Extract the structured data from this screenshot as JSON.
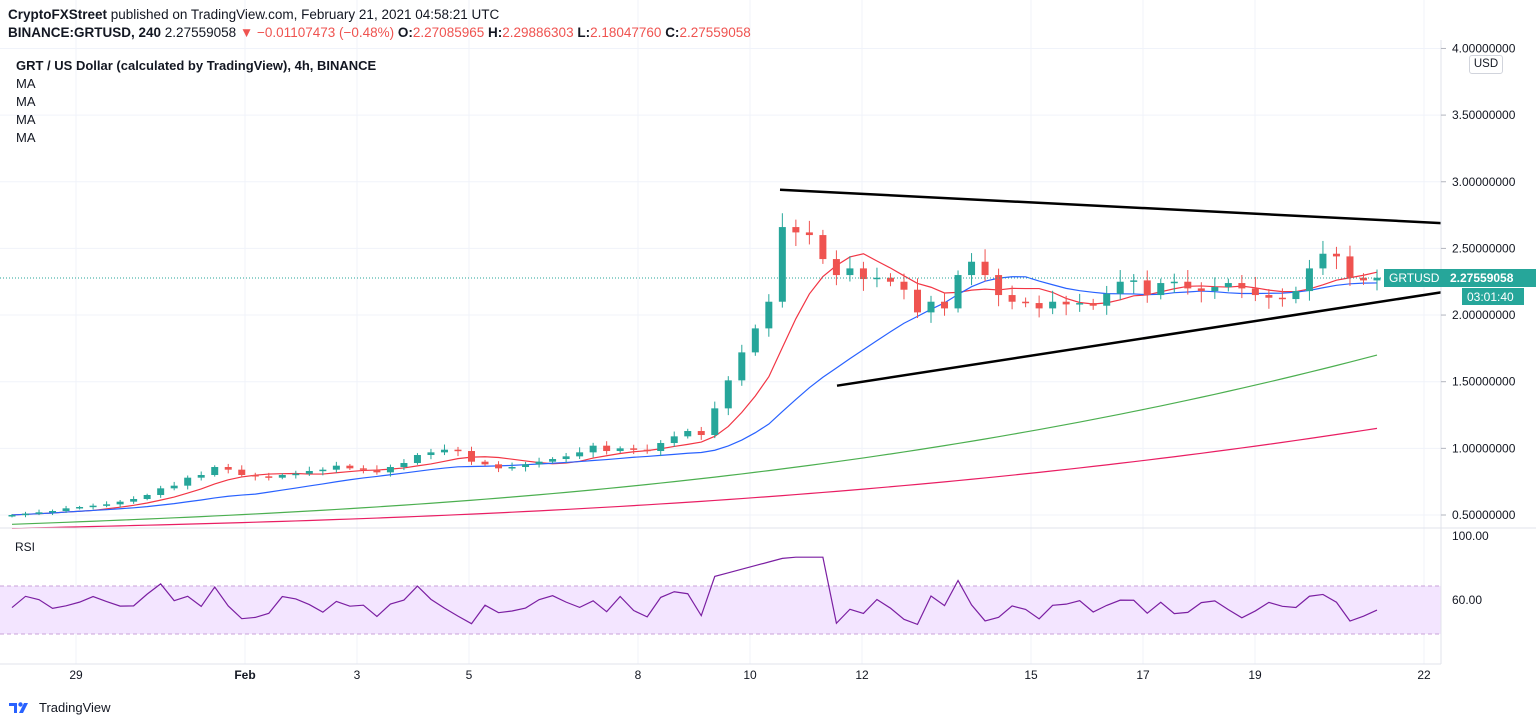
{
  "header": {
    "publisher": "CryptoFXStreet",
    "published_text": "published on TradingView.com, February 21, 2021 04:58:21 UTC",
    "symbol_interval": "BINANCE:GRTUSD, 240",
    "last_price": "2.27559058",
    "arrow": "▼",
    "change": "−0.01107473 (−0.48%)",
    "o_label": "O:",
    "o_value": "2.27085965",
    "h_label": "H:",
    "h_value": "2.29886303",
    "l_label": "L:",
    "l_value": "2.18047760",
    "c_label": "C:",
    "c_value": "2.27559058"
  },
  "legend": {
    "title": "GRT / US Dollar (calculated by TradingView), 4h, BINANCE",
    "ma_labels": [
      "MA",
      "MA",
      "MA",
      "MA"
    ]
  },
  "price_axis": {
    "currency": "USD",
    "ticks": [
      "4.00000000",
      "3.50000000",
      "3.00000000",
      "2.50000000",
      "2.00000000",
      "1.50000000",
      "1.00000000",
      "0.50000000"
    ]
  },
  "price_tag": {
    "symbol": "GRTUSD",
    "value": "2.27559058",
    "countdown": "03:01:40"
  },
  "rsi": {
    "label": "RSI",
    "ticks": [
      "100.00",
      "60.00"
    ]
  },
  "time_axis": {
    "labels": [
      "29",
      "Feb",
      "3",
      "5",
      "8",
      "10",
      "12",
      "15",
      "17",
      "19",
      "22"
    ]
  },
  "footer": {
    "brand": "TradingView"
  },
  "colors": {
    "up": "#26a69a",
    "down": "#ef5350",
    "ma_red": "#f23645",
    "ma_blue": "#2962ff",
    "ma_green": "#4caf50",
    "ma_pink": "#e91e63",
    "rsi": "#7b1fa2",
    "rsi_band": "#f3e5ff",
    "tag": "#26a69a"
  },
  "chart_data": {
    "type": "candlestick",
    "title": "GRT / US Dollar (calculated by TradingView), 4h, BINANCE",
    "ylabel": "USD",
    "ylim": [
      0.4,
      4.05
    ],
    "x_categories": [
      "29",
      "Feb",
      "3",
      "5",
      "8",
      "10",
      "12",
      "15",
      "17",
      "19",
      "22"
    ],
    "close_series": [
      0.5,
      0.51,
      0.52,
      0.53,
      0.55,
      0.56,
      0.57,
      0.58,
      0.6,
      0.62,
      0.65,
      0.7,
      0.72,
      0.78,
      0.8,
      0.86,
      0.84,
      0.8,
      0.79,
      0.78,
      0.8,
      0.81,
      0.83,
      0.84,
      0.87,
      0.85,
      0.84,
      0.82,
      0.86,
      0.89,
      0.95,
      0.97,
      0.99,
      0.98,
      0.9,
      0.88,
      0.85,
      0.86,
      0.88,
      0.9,
      0.92,
      0.94,
      0.97,
      1.02,
      0.98,
      1.0,
      0.99,
      0.98,
      1.04,
      1.09,
      1.13,
      1.1,
      1.3,
      1.51,
      1.72,
      1.9,
      2.1,
      2.66,
      2.62,
      2.6,
      2.42,
      2.3,
      2.35,
      2.27,
      2.28,
      2.25,
      2.19,
      2.02,
      2.1,
      2.05,
      2.3,
      2.4,
      2.3,
      2.15,
      2.1,
      2.09,
      2.05,
      2.1,
      2.08,
      2.09,
      2.07,
      2.16,
      2.25,
      2.26,
      2.15,
      2.24,
      2.25,
      2.2,
      2.18,
      2.21,
      2.24,
      2.2,
      2.15,
      2.13,
      2.12,
      2.18,
      2.35,
      2.46,
      2.44,
      2.28,
      2.26,
      2.28
    ],
    "moving_averages": [
      {
        "name": "MA (red)",
        "start": 0.47,
        "end": 2.25
      },
      {
        "name": "MA (blue)",
        "start": 0.46,
        "end": 2.21
      },
      {
        "name": "MA (green)",
        "start": 0.43,
        "end": 1.7
      },
      {
        "name": "MA (pink)",
        "start": 0.4,
        "end": 1.15
      }
    ],
    "trendlines": [
      {
        "name": "upper",
        "from": [
          "Feb 10",
          2.94
        ],
        "to": [
          "Feb 21",
          2.69
        ]
      },
      {
        "name": "lower",
        "from": [
          "Feb 11",
          1.47
        ],
        "to": [
          "Feb 21",
          2.17
        ]
      }
    ],
    "last_price": 2.27559058,
    "rsi": {
      "upper_band": 70,
      "lower_band": 30,
      "last": 52
    },
    "y_ticks": [
      4.0,
      3.5,
      3.0,
      2.5,
      2.0,
      1.5,
      1.0,
      0.5
    ]
  }
}
